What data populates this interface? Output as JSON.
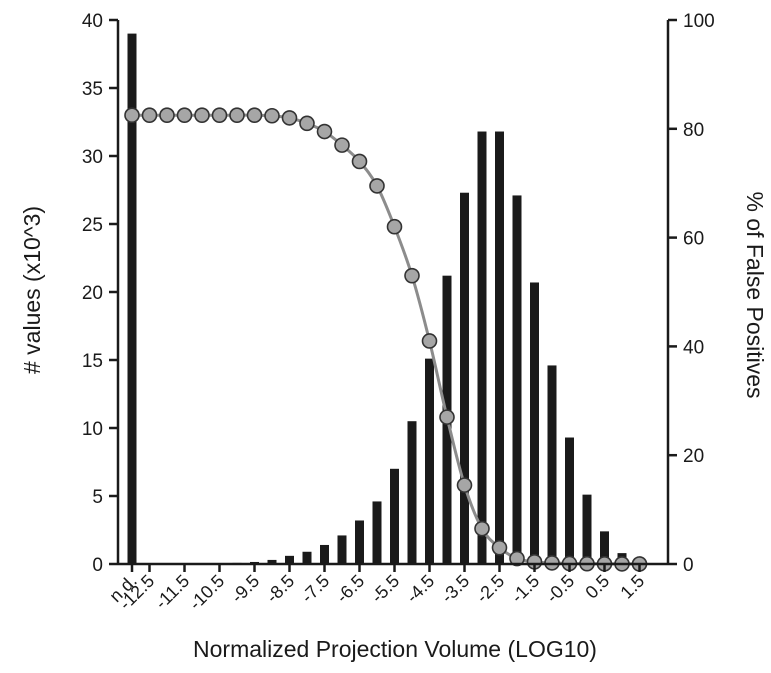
{
  "chart_data": {
    "type": "bar",
    "xlabel": "Normalized Projection Volume (LOG10)",
    "ylabel": "# values  (x10^3)",
    "y2label": "% of False Positives",
    "ylim": [
      0,
      40
    ],
    "y2lim": [
      0,
      100
    ],
    "yticks": [
      "0",
      "5",
      "10",
      "15",
      "20",
      "25",
      "30",
      "35",
      "40"
    ],
    "y2ticks": [
      "0",
      "20",
      "40",
      "60",
      "80",
      "100"
    ],
    "x_tick_labels": [
      "n.d.",
      "-12.5",
      "-11.5",
      "-10.5",
      "-9.5",
      "-8.5",
      "-7.5",
      "-6.5",
      "-5.5",
      "-4.5",
      "-3.5",
      "-2.5",
      "-1.5",
      "-0.5",
      "0.5",
      "1.5"
    ],
    "categories": [
      "n.d.",
      "-12.5",
      "-12",
      "-11.5",
      "-11",
      "-10.5",
      "-10",
      "-9.5",
      "-9",
      "-8.5",
      "-8",
      "-7.5",
      "-7",
      "-6.5",
      "-6",
      "-5.5",
      "-5",
      "-4.5",
      "-4",
      "-3.5",
      "-3",
      "-2.5",
      "-2",
      "-1.5",
      "-1",
      "-0.5",
      "0",
      "0.5",
      "1",
      "1.5"
    ],
    "series": [
      {
        "type": "bar",
        "axis": "left",
        "values": [
          39.0,
          0.02,
          0.02,
          0.03,
          0.04,
          0.05,
          0.08,
          0.15,
          0.3,
          0.6,
          0.9,
          1.4,
          2.1,
          3.2,
          4.6,
          7.0,
          10.5,
          15.1,
          21.2,
          27.3,
          31.8,
          31.8,
          27.1,
          20.7,
          14.6,
          9.3,
          5.1,
          2.4,
          0.8,
          0.3
        ]
      },
      {
        "type": "line",
        "axis": "right",
        "values": [
          82.5,
          82.5,
          82.5,
          82.5,
          82.5,
          82.5,
          82.5,
          82.5,
          82.4,
          82.0,
          81.0,
          79.5,
          77.0,
          74.0,
          69.5,
          62.0,
          53.0,
          41.0,
          27.0,
          14.5,
          6.5,
          3.0,
          1.0,
          0.4,
          0.2,
          0.1,
          0.05,
          0.03,
          0.02,
          0.01
        ]
      }
    ],
    "grid": false,
    "legend": "none"
  }
}
